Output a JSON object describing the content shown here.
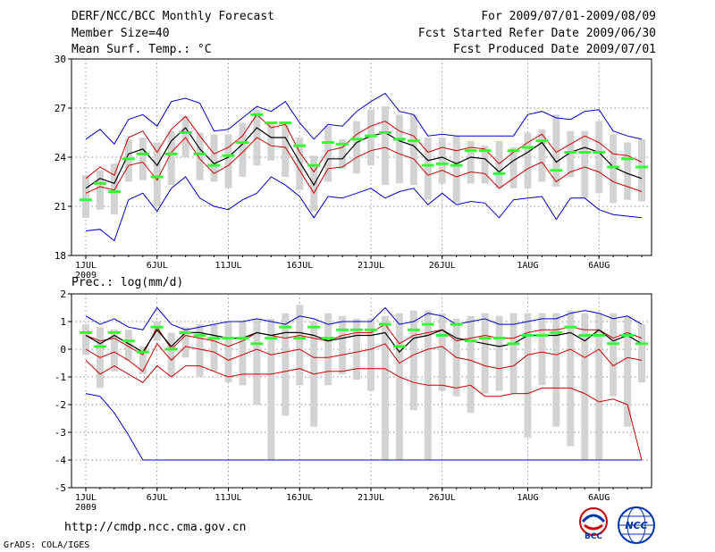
{
  "header": {
    "title": "DERF/NCC/BCC Monthly Forecast",
    "member_size": "Member Size=40",
    "variable": "Mean Surf. Temp.: °C",
    "period": "For 2009/07/01-2009/08/09",
    "started": "Fcst Started Refer Date 2009/06/30",
    "produced": "Fcst Produced Date 2009/07/01"
  },
  "footer": {
    "url": "http://cmdp.ncc.cma.gov.cn",
    "credit": "GrADS: COLA/IGES",
    "logo_bcc": "BCC",
    "logo_ncc": "NCC"
  },
  "colors": {
    "max_min": "#0000cc",
    "spread": "#cc0000",
    "mean": "#000000",
    "median": "#33ff33",
    "box": "#d3d3d3"
  },
  "chart_data": [
    {
      "type": "box-line",
      "title": "Mean Surf. Temp.: °C",
      "ylabel": "",
      "ylim": [
        18,
        30
      ],
      "yticks": [
        18,
        21,
        24,
        27,
        30
      ],
      "grid": true,
      "xticks": [
        {
          "day": 1,
          "label": "1JUL",
          "sublabel": "2009"
        },
        {
          "day": 6,
          "label": "6JUL"
        },
        {
          "day": 11,
          "label": "11JUL"
        },
        {
          "day": 16,
          "label": "16JUL"
        },
        {
          "day": 21,
          "label": "21JUL"
        },
        {
          "day": 26,
          "label": "26JUL"
        },
        {
          "day": 32,
          "label": "1AUG"
        },
        {
          "day": 37,
          "label": "6AUG"
        }
      ],
      "days": [
        1,
        2,
        3,
        4,
        5,
        6,
        7,
        8,
        9,
        10,
        11,
        12,
        13,
        14,
        15,
        16,
        17,
        18,
        19,
        20,
        21,
        22,
        23,
        24,
        25,
        26,
        27,
        28,
        29,
        30,
        31,
        32,
        33,
        34,
        35,
        36,
        37,
        38,
        39,
        40
      ],
      "series": [
        {
          "name": "max",
          "color": "#0000cc",
          "values": [
            25.1,
            25.7,
            24.8,
            26.3,
            26.6,
            25.9,
            27.4,
            27.6,
            27.3,
            25.6,
            25.7,
            26.4,
            27.1,
            26.8,
            27.4,
            26.1,
            25.1,
            26.0,
            25.9,
            26.8,
            27.4,
            27.9,
            26.8,
            26.6,
            25.3,
            25.4,
            25.3,
            25.3,
            25.3,
            25.3,
            25.3,
            26.6,
            26.8,
            26.4,
            26.3,
            26.8,
            26.9,
            25.6,
            25.3,
            25.1
          ]
        },
        {
          "name": "upper",
          "color": "#cc0000",
          "values": [
            22.7,
            23.4,
            22.9,
            25.2,
            25.6,
            24.3,
            25.7,
            26.5,
            25.3,
            24.2,
            24.6,
            25.3,
            26.6,
            25.8,
            26.0,
            24.3,
            23.1,
            24.4,
            24.6,
            25.4,
            25.9,
            26.2,
            25.6,
            25.3,
            24.3,
            24.6,
            24.4,
            24.6,
            24.5,
            23.6,
            24.3,
            24.9,
            25.4,
            24.3,
            24.8,
            25.3,
            24.9,
            24.2,
            24.1,
            23.7
          ]
        },
        {
          "name": "mean",
          "color": "#000000",
          "values": [
            22.1,
            22.7,
            22.4,
            24.2,
            24.5,
            23.5,
            25.0,
            25.8,
            24.5,
            23.6,
            24.0,
            24.8,
            25.8,
            25.2,
            25.2,
            23.7,
            22.3,
            23.9,
            23.9,
            24.9,
            25.3,
            25.5,
            25.0,
            24.7,
            23.8,
            24.0,
            23.6,
            24.0,
            23.9,
            23.1,
            23.8,
            24.3,
            24.9,
            23.7,
            24.3,
            24.6,
            24.3,
            23.4,
            23.0,
            22.7
          ]
        },
        {
          "name": "lower",
          "color": "#cc0000",
          "values": [
            21.8,
            22.2,
            22.0,
            23.5,
            23.7,
            22.6,
            24.3,
            25.2,
            23.9,
            23.0,
            23.5,
            24.3,
            25.2,
            24.7,
            24.6,
            23.2,
            21.8,
            23.3,
            23.4,
            24.0,
            24.4,
            24.6,
            24.2,
            23.9,
            22.9,
            23.2,
            22.8,
            23.1,
            23.0,
            22.1,
            22.7,
            23.3,
            23.7,
            22.5,
            23.1,
            23.4,
            23.1,
            22.5,
            22.2,
            21.9
          ]
        },
        {
          "name": "min",
          "color": "#0000cc",
          "values": [
            19.5,
            19.6,
            18.9,
            21.4,
            21.8,
            20.7,
            22.1,
            22.8,
            21.5,
            21.0,
            20.8,
            21.4,
            21.8,
            22.8,
            22.3,
            21.6,
            20.3,
            21.6,
            21.5,
            21.8,
            22.1,
            21.5,
            21.9,
            22.1,
            21.1,
            21.8,
            21.1,
            21.3,
            21.2,
            20.3,
            21.4,
            21.5,
            21.6,
            20.2,
            21.5,
            21.5,
            20.8,
            20.5,
            20.4,
            20.3
          ]
        },
        {
          "name": "median",
          "color": "#33ff33",
          "values": [
            21.4,
            22.4,
            21.9,
            23.9,
            24.2,
            22.8,
            24.2,
            25.5,
            24.2,
            23.5,
            24.1,
            24.9,
            26.6,
            26.1,
            26.1,
            24.7,
            23.5,
            24.9,
            24.8,
            25.1,
            25.3,
            25.5,
            25.1,
            25.0,
            23.5,
            23.6,
            23.5,
            24.4,
            24.4,
            23.0,
            24.4,
            24.6,
            25.0,
            23.2,
            24.3,
            24.3,
            24.3,
            23.4,
            23.9,
            23.4
          ]
        },
        {
          "name": "box_top",
          "values": [
            22.9,
            23.2,
            23.6,
            25.1,
            25.2,
            24.9,
            25.6,
            26.5,
            25.5,
            25.4,
            25.4,
            26.1,
            26.9,
            26.0,
            26.0,
            25.2,
            24.1,
            25.9,
            25.1,
            26.2,
            26.9,
            27.1,
            26.6,
            26.6,
            25.2,
            25.2,
            25.3,
            25.0,
            24.7,
            25.0,
            24.6,
            25.5,
            25.7,
            26.6,
            25.6,
            25.6,
            26.2,
            25.4,
            24.9,
            25.1
          ]
        },
        {
          "name": "box_bottom",
          "values": [
            20.3,
            20.8,
            20.5,
            22.5,
            22.6,
            21.0,
            22.3,
            24.0,
            22.6,
            22.5,
            22.1,
            22.8,
            23.5,
            23.8,
            22.8,
            22.0,
            20.7,
            22.5,
            23.3,
            23.0,
            23.5,
            22.3,
            22.4,
            22.3,
            21.4,
            22.4,
            21.2,
            22.4,
            22.4,
            22.1,
            22.1,
            22.1,
            22.5,
            22.2,
            22.8,
            21.5,
            21.8,
            21.2,
            21.4,
            21.3
          ]
        }
      ]
    },
    {
      "type": "box-line",
      "title": "Prec.: log(mm/d)",
      "ylabel": "",
      "ylim": [
        -5,
        2
      ],
      "yticks": [
        -5,
        -4,
        -3,
        -2,
        -1,
        0,
        1,
        2
      ],
      "grid": true,
      "xticks": [
        {
          "day": 1,
          "label": "1JUL",
          "sublabel": "2009"
        },
        {
          "day": 6,
          "label": "6JUL"
        },
        {
          "day": 11,
          "label": "11JUL"
        },
        {
          "day": 16,
          "label": "16JUL"
        },
        {
          "day": 21,
          "label": "21JUL"
        },
        {
          "day": 26,
          "label": "26JUL"
        },
        {
          "day": 32,
          "label": "1AUG"
        },
        {
          "day": 37,
          "label": "6AUG"
        }
      ],
      "days": [
        1,
        2,
        3,
        4,
        5,
        6,
        7,
        8,
        9,
        10,
        11,
        12,
        13,
        14,
        15,
        16,
        17,
        18,
        19,
        20,
        21,
        22,
        23,
        24,
        25,
        26,
        27,
        28,
        29,
        30,
        31,
        32,
        33,
        34,
        35,
        36,
        37,
        38,
        39,
        40
      ],
      "series": [
        {
          "name": "max",
          "color": "#0000cc",
          "values": [
            1.2,
            0.9,
            1.1,
            0.8,
            0.7,
            1.5,
            0.9,
            0.7,
            0.8,
            0.9,
            1.0,
            1.0,
            1.1,
            1.0,
            0.9,
            1.2,
            1.1,
            0.9,
            1.0,
            1.0,
            1.0,
            1.5,
            0.9,
            1.0,
            1.3,
            1.2,
            0.9,
            1.0,
            1.1,
            0.9,
            0.9,
            1.0,
            1.1,
            1.1,
            1.3,
            1.4,
            1.3,
            1.1,
            1.2,
            0.9
          ]
        },
        {
          "name": "upper",
          "color": "#cc0000",
          "values": [
            0.5,
            0.3,
            0.4,
            0.1,
            -0.2,
            0.8,
            0.0,
            0.5,
            0.4,
            0.3,
            0.1,
            0.3,
            0.6,
            0.5,
            0.4,
            0.5,
            0.4,
            0.3,
            0.5,
            0.6,
            0.6,
            0.9,
            0.2,
            0.5,
            0.6,
            0.7,
            0.3,
            0.4,
            0.5,
            0.4,
            0.4,
            0.6,
            0.7,
            0.7,
            0.8,
            0.7,
            0.7,
            0.4,
            0.6,
            0.4
          ]
        },
        {
          "name": "mean",
          "color": "#000000",
          "values": [
            0.5,
            0.2,
            0.5,
            0.2,
            -0.1,
            0.7,
            0.1,
            0.6,
            0.6,
            0.5,
            0.4,
            0.4,
            0.6,
            0.5,
            0.6,
            0.6,
            0.5,
            0.3,
            0.4,
            0.5,
            0.5,
            0.6,
            -0.1,
            0.4,
            0.5,
            0.7,
            0.4,
            0.3,
            0.2,
            0.1,
            0.2,
            0.5,
            0.5,
            0.5,
            0.6,
            0.3,
            0.7,
            0.3,
            0.5,
            0.2
          ]
        },
        {
          "name": "lower",
          "color": "#cc0000",
          "values": [
            0.0,
            -0.3,
            -0.1,
            -0.4,
            -0.8,
            0.2,
            -0.4,
            0.1,
            0.0,
            -0.1,
            -0.4,
            -0.2,
            0.0,
            -0.2,
            -0.1,
            0.0,
            -0.3,
            -0.3,
            -0.2,
            -0.1,
            0.0,
            0.2,
            -0.5,
            -0.2,
            0.0,
            0.1,
            -0.3,
            -0.4,
            -0.6,
            -0.7,
            -0.6,
            -0.2,
            -0.1,
            -0.2,
            0.0,
            -0.3,
            0.0,
            -0.6,
            -0.3,
            -0.4
          ]
        },
        {
          "name": "lower2",
          "color": "#cc0000",
          "values": [
            -0.4,
            -0.9,
            -0.6,
            -0.9,
            -1.2,
            -0.6,
            -1.0,
            -0.6,
            -0.6,
            -0.8,
            -1.0,
            -0.9,
            -0.9,
            -0.9,
            -0.8,
            -0.7,
            -0.9,
            -0.8,
            -0.8,
            -0.7,
            -0.7,
            -0.7,
            -1.0,
            -1.2,
            -1.3,
            -1.3,
            -1.4,
            -1.3,
            -1.7,
            -1.7,
            -1.6,
            -1.6,
            -1.4,
            -1.4,
            -1.4,
            -1.6,
            -1.9,
            -1.8,
            -2.0,
            -4.0
          ]
        },
        {
          "name": "min",
          "color": "#0000cc",
          "values": [
            -1.6,
            -1.7,
            -2.3,
            -3.1,
            -4.0,
            -4.0,
            -4.0,
            -4.0,
            -4.0,
            -4.0,
            -4.0,
            -4.0,
            -4.0,
            -4.0,
            -4.0,
            -4.0,
            -4.0,
            -4.0,
            -4.0,
            -4.0,
            -4.0,
            -4.0,
            -4.0,
            -4.0,
            -4.0,
            -4.0,
            -4.0,
            -4.0,
            -4.0,
            -4.0,
            -4.0,
            -4.0,
            -4.0,
            -4.0,
            -4.0,
            -4.0,
            -4.0,
            -4.0,
            -4.0,
            -4.0
          ]
        },
        {
          "name": "median",
          "color": "#33ff33",
          "values": [
            0.6,
            0.1,
            0.6,
            0.3,
            -0.1,
            0.8,
            0.0,
            0.6,
            0.5,
            0.4,
            0.4,
            0.4,
            0.2,
            0.4,
            0.8,
            0.4,
            0.8,
            0.4,
            0.7,
            0.7,
            0.7,
            0.9,
            0.1,
            0.7,
            0.9,
            0.5,
            0.9,
            0.3,
            0.4,
            0.4,
            0.2,
            0.5,
            0.5,
            0.6,
            0.8,
            0.5,
            0.5,
            0.2,
            0.5,
            0.2
          ]
        },
        {
          "name": "box_top",
          "values": [
            0.9,
            0.8,
            0.7,
            0.7,
            0.1,
            1.0,
            0.6,
            0.8,
            0.9,
            0.9,
            1.0,
            1.0,
            1.1,
            1.1,
            1.3,
            1.6,
            1.0,
            1.3,
            1.2,
            1.1,
            1.1,
            1.2,
            1.3,
            1.4,
            1.4,
            1.3,
            1.1,
            1.2,
            1.3,
            1.2,
            1.3,
            1.3,
            1.3,
            1.3,
            1.4,
            1.3,
            1.3,
            1.3,
            1.2,
            0.9
          ]
        },
        {
          "name": "box_bottom",
          "values": [
            -0.2,
            -1.4,
            -0.8,
            -0.4,
            -0.9,
            0.3,
            -1.0,
            -0.3,
            -1.0,
            -0.8,
            -1.2,
            -1.3,
            -2.0,
            -4.0,
            -2.4,
            -1.3,
            -2.8,
            -1.3,
            -0.9,
            -1.1,
            -1.5,
            -4.0,
            -4.0,
            -2.2,
            -4.0,
            -1.5,
            -1.7,
            -2.3,
            -1.6,
            -1.5,
            -1.6,
            -3.2,
            -1.3,
            -2.8,
            -3.5,
            -4.0,
            -4.0,
            -1.7,
            -2.8,
            -1.2
          ]
        }
      ]
    }
  ]
}
